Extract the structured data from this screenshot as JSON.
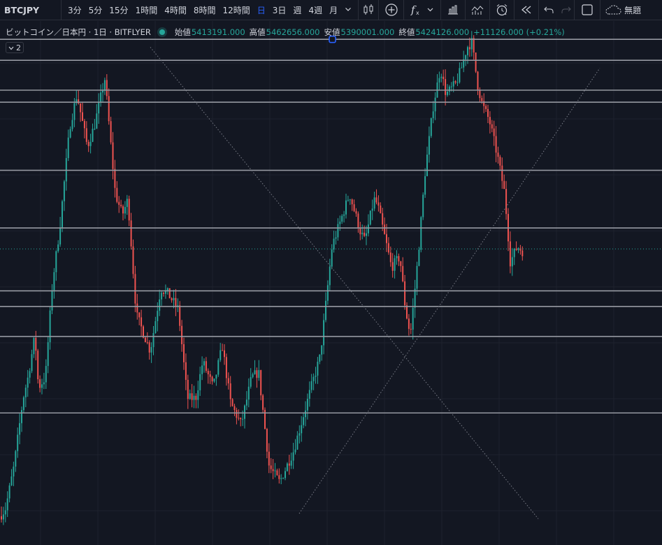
{
  "toolbar": {
    "symbol": "BTCJPY",
    "intervals": [
      "3分",
      "5分",
      "15分",
      "1時間",
      "4時間",
      "8時間",
      "12時間",
      "日",
      "3日",
      "週",
      "4週",
      "月"
    ],
    "active_interval": "日",
    "layout_name": "無題"
  },
  "legend": {
    "title": "ビットコイン／日本円 · 1日 · BITFLYER",
    "open_label": "始値",
    "open": "5413191.000",
    "high_label": "高値",
    "high": "5462656.000",
    "low_label": "安値",
    "low": "5390001.000",
    "close_label": "終値",
    "close": "5424126.000",
    "change": "+11126.000 (+0.21%)",
    "indicators_count": "2"
  },
  "colors": {
    "background": "#131722",
    "up": "#26a69a",
    "down": "#ef5350",
    "accent": "#2962ff",
    "hline": "#9598a1"
  },
  "chart_data": {
    "type": "candlestick",
    "interval": "1日",
    "price_scale": "hidden",
    "grid": true,
    "anchor_points": [
      [
        0,
        0.055
      ],
      [
        8,
        0.07
      ],
      [
        20,
        0.15
      ],
      [
        33,
        0.28
      ],
      [
        40,
        0.32
      ],
      [
        50,
        0.4
      ],
      [
        55,
        0.3
      ],
      [
        65,
        0.32
      ],
      [
        75,
        0.5
      ],
      [
        85,
        0.6
      ],
      [
        100,
        0.8
      ],
      [
        110,
        0.86
      ],
      [
        125,
        0.76
      ],
      [
        135,
        0.8
      ],
      [
        150,
        0.89
      ],
      [
        165,
        0.67
      ],
      [
        175,
        0.63
      ],
      [
        183,
        0.66
      ],
      [
        195,
        0.44
      ],
      [
        215,
        0.37
      ],
      [
        230,
        0.49
      ],
      [
        240,
        0.48
      ],
      [
        255,
        0.45
      ],
      [
        268,
        0.28
      ],
      [
        280,
        0.28
      ],
      [
        290,
        0.35
      ],
      [
        305,
        0.3
      ],
      [
        318,
        0.38
      ],
      [
        330,
        0.27
      ],
      [
        345,
        0.23
      ],
      [
        360,
        0.32
      ],
      [
        370,
        0.33
      ],
      [
        385,
        0.15
      ],
      [
        400,
        0.12
      ],
      [
        420,
        0.18
      ],
      [
        445,
        0.3
      ],
      [
        458,
        0.36
      ],
      [
        475,
        0.57
      ],
      [
        485,
        0.61
      ],
      [
        500,
        0.67
      ],
      [
        515,
        0.6
      ],
      [
        522,
        0.58
      ],
      [
        535,
        0.66
      ],
      [
        540,
        0.65
      ],
      [
        550,
        0.59
      ],
      [
        560,
        0.53
      ],
      [
        572,
        0.55
      ],
      [
        580,
        0.45
      ],
      [
        587,
        0.4
      ],
      [
        598,
        0.55
      ],
      [
        608,
        0.71
      ],
      [
        620,
        0.84
      ],
      [
        630,
        0.91
      ],
      [
        638,
        0.86
      ],
      [
        652,
        0.88
      ],
      [
        660,
        0.91
      ],
      [
        668,
        0.95
      ],
      [
        675,
        0.96
      ],
      [
        683,
        0.88
      ],
      [
        690,
        0.84
      ],
      [
        700,
        0.81
      ],
      [
        712,
        0.74
      ],
      [
        722,
        0.67
      ],
      [
        730,
        0.54
      ],
      [
        740,
        0.57
      ],
      [
        748,
        0.56
      ]
    ],
    "horizontal_levels": [
      0.965,
      0.925,
      0.868,
      0.845,
      0.715,
      0.605,
      0.485,
      0.455,
      0.398,
      0.252
    ],
    "current_level": 0.565,
    "trendlines": [
      {
        "from": [
          215,
          0.95
        ],
        "to": [
          770,
          0.05
        ]
      },
      {
        "from": [
          428,
          0.06
        ],
        "to": [
          858,
          0.91
        ]
      }
    ]
  }
}
